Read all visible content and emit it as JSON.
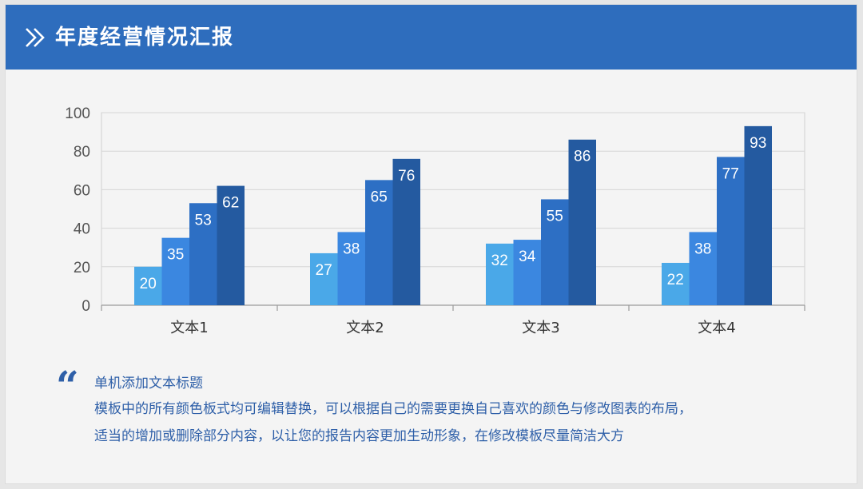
{
  "header": {
    "title": "年度经营情况汇报",
    "icon": "double-chevron-right-icon",
    "color": "#2e6dbd"
  },
  "chart_data": {
    "type": "bar",
    "categories": [
      "文本1",
      "文本2",
      "文本3",
      "文本4"
    ],
    "series": [
      {
        "values": [
          20,
          27,
          32,
          22
        ],
        "color": "#4aa8e8"
      },
      {
        "values": [
          35,
          38,
          34,
          38
        ],
        "color": "#3b87e0"
      },
      {
        "values": [
          53,
          65,
          55,
          77
        ],
        "color": "#2d6fc4"
      },
      {
        "values": [
          62,
          76,
          86,
          93
        ],
        "color": "#245aa0"
      }
    ],
    "ylim": [
      0,
      100
    ],
    "yticks": [
      0,
      20,
      40,
      60,
      80,
      100
    ],
    "grid": true,
    "legend": "none"
  },
  "note": {
    "title": "单机添加文本标题",
    "lines": [
      "模板中的所有颜色板式均可编辑替换，可以根据自己的需要更换自己喜欢的颜色与修改图表的布局，",
      "适当的增加或删除部分内容，以让您的报告内容更加生动形象，在修改模板尽量简洁大方"
    ],
    "quote_icon": "quote-icon",
    "quote_glyph": "“"
  }
}
